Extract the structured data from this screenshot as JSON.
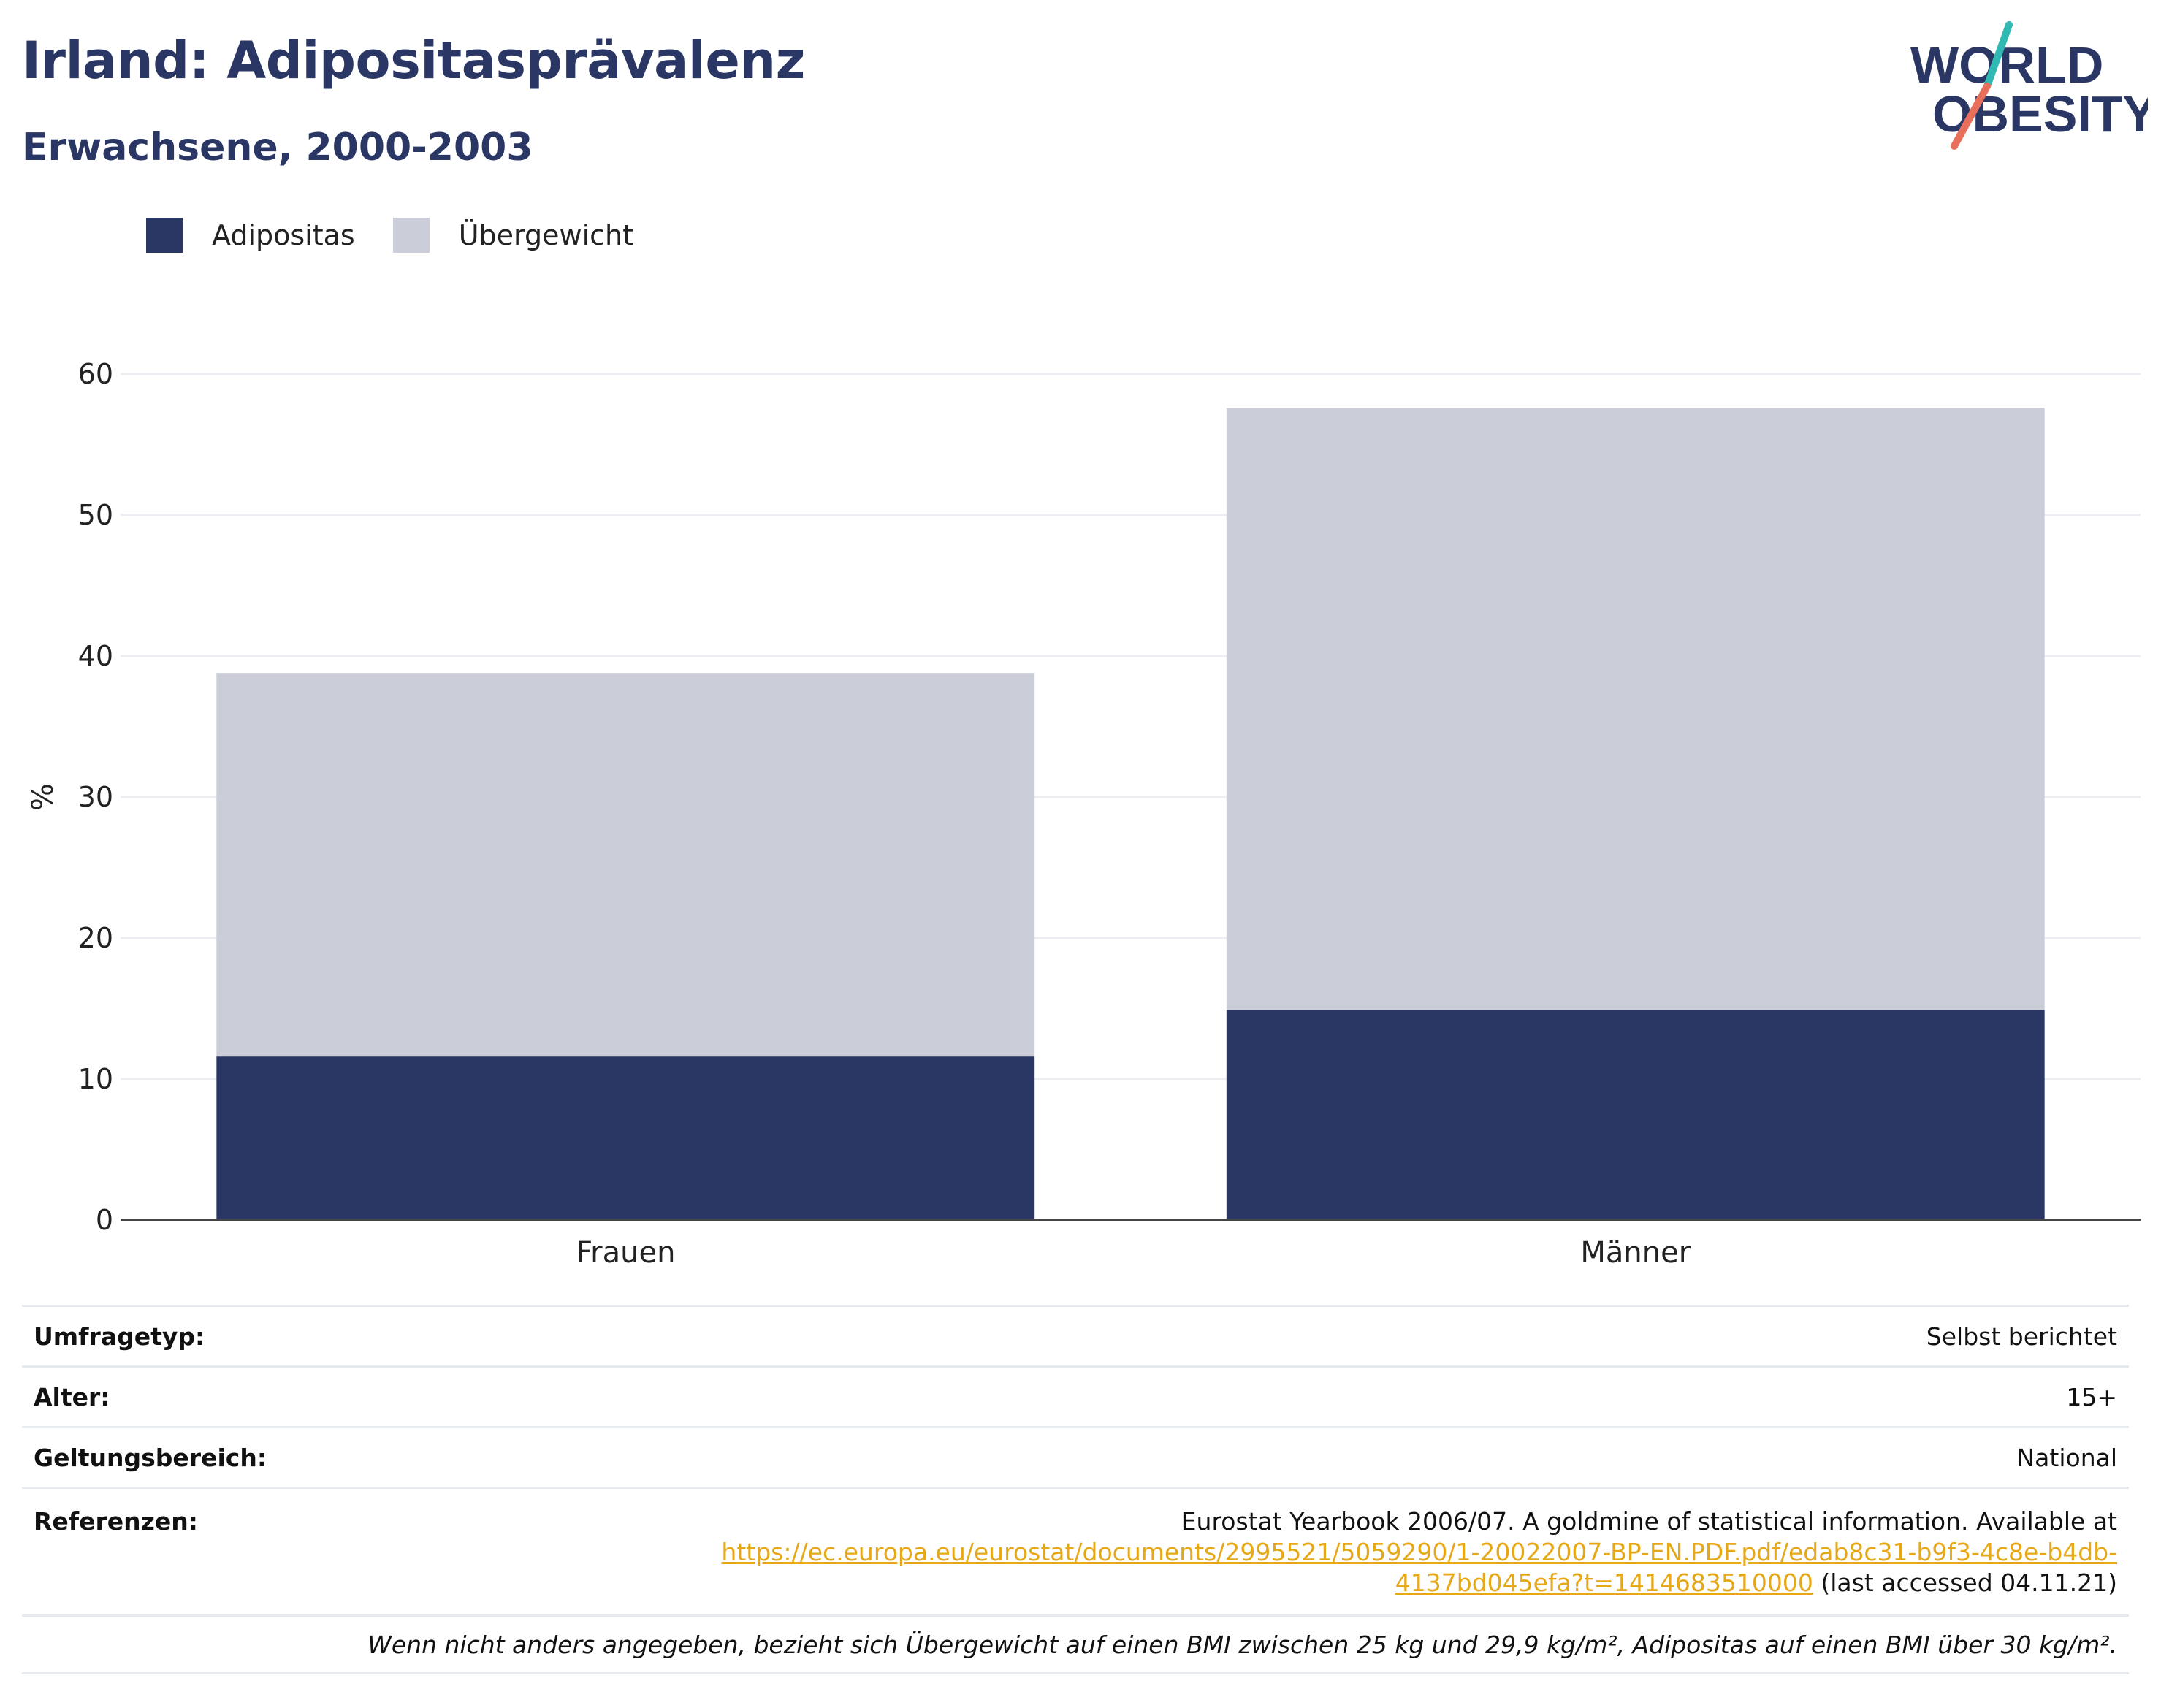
{
  "header": {
    "title": "Irland: Adipositasprävalenz",
    "subtitle": "Erwachsene, 2000-2003",
    "logo_line1": "WORLD",
    "logo_line2": "OBESITY"
  },
  "colors": {
    "obesity": "#2a3663",
    "overweight": "#cbcdd8",
    "title": "#2a3663",
    "link": "#e6a817",
    "logo_teal": "#2fb9b2",
    "logo_coral": "#e76f5c"
  },
  "legend": {
    "obesity_label": "Adipositas",
    "overweight_label": "Übergewicht"
  },
  "chart_data": {
    "type": "bar",
    "stacked": true,
    "categories": [
      "Frauen",
      "Männer"
    ],
    "series": [
      {
        "name": "Adipositas",
        "values": [
          11.6,
          14.9
        ]
      },
      {
        "name": "Übergewicht",
        "values": [
          27.2,
          42.7
        ]
      }
    ],
    "ylabel": "%",
    "ylim": [
      0,
      60
    ],
    "yticks": [
      0,
      10,
      20,
      30,
      40,
      50,
      60
    ],
    "grid": true,
    "legend_position": "top-left"
  },
  "info": {
    "survey_label": "Umfragetyp:",
    "survey_value": "Selbst berichtet",
    "age_label": "Alter:",
    "age_value": "15+",
    "scope_label": "Geltungsbereich:",
    "scope_value": "National",
    "ref_label": "Referenzen:",
    "ref_text": "Eurostat Yearbook 2006/07. A goldmine of statistical information. Available at",
    "ref_link_line1": "https://ec.europa.eu/eurostat/documents/2995521/5059290/1-20022007-BP-EN.PDF.pdf/edab8c31-b9f3-4c8e-b4db-",
    "ref_link_line2": "4137bd045efa?t=1414683510000",
    "ref_suffix": " (last accessed 04.11.21)",
    "note": "Wenn nicht anders angegeben, bezieht sich Übergewicht auf einen BMI zwischen 25 kg und 29,9 kg/m², Adipositas auf einen BMI über 30 kg/m²."
  }
}
